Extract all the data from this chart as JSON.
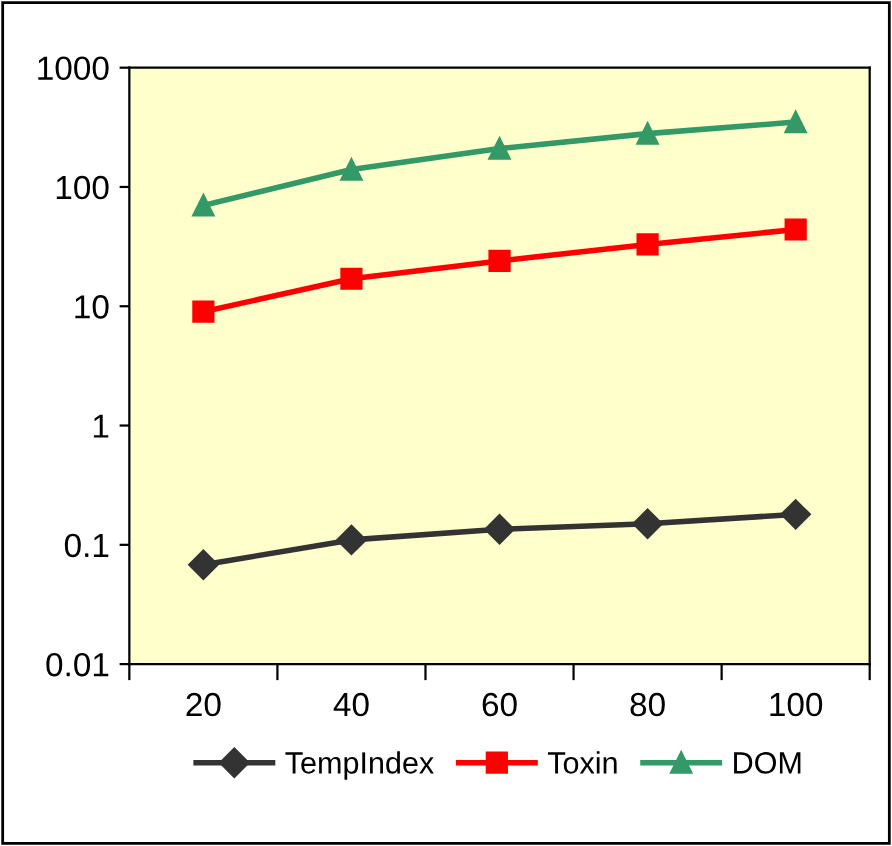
{
  "chart_data": {
    "type": "line",
    "categories": [
      "20",
      "40",
      "60",
      "80",
      "100"
    ],
    "series": [
      {
        "name": "TempIndex",
        "color": "#333333",
        "marker": "diamond",
        "values": [
          0.068,
          0.11,
          0.135,
          0.15,
          0.18
        ]
      },
      {
        "name": "Toxin",
        "color": "#ff0000",
        "marker": "square",
        "values": [
          9,
          17,
          24,
          33,
          44
        ]
      },
      {
        "name": "DOM",
        "color": "#339966",
        "marker": "triangle",
        "values": [
          70,
          140,
          210,
          280,
          350
        ]
      }
    ],
    "log": "y",
    "ylim": [
      0.01,
      1000
    ],
    "yticks": [
      0.01,
      0.1,
      1,
      10,
      100,
      1000
    ],
    "grid": false,
    "legend": "bottom",
    "line_style": "solid"
  }
}
